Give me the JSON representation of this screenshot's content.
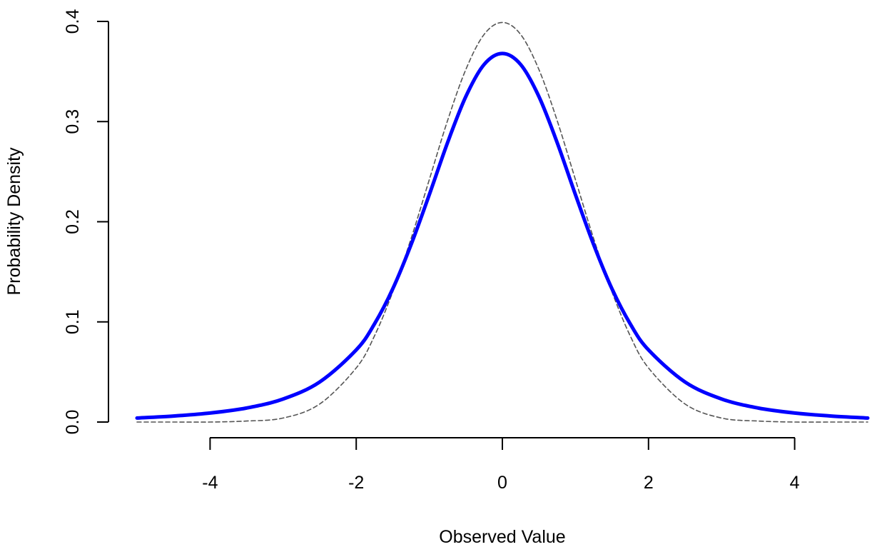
{
  "chart_data": {
    "type": "line",
    "title": "",
    "xlabel": "Observed Value",
    "ylabel": "Probability Density",
    "xlim": [
      -5,
      5
    ],
    "ylim": [
      0,
      0.4
    ],
    "x_ticks": [
      -4,
      -2,
      0,
      2,
      4
    ],
    "x_tick_labels": [
      "-4",
      "-2",
      "0",
      "2",
      "4"
    ],
    "y_ticks": [
      0,
      0.1,
      0.2,
      0.3,
      0.4
    ],
    "y_tick_labels": [
      "0.0",
      "0.1",
      "0.2",
      "0.3",
      "0.4"
    ],
    "grid": false,
    "legend": "none",
    "series": [
      {
        "style": "solid",
        "color": "#0000ff",
        "x": [
          -5,
          -4.5,
          -4,
          -3.5,
          -3,
          -2.5,
          -2,
          -1.75,
          -1.5,
          -1.25,
          -1,
          -0.75,
          -0.5,
          -0.25,
          0,
          0.25,
          0.5,
          0.75,
          1,
          1.25,
          1.5,
          1.75,
          2,
          2.5,
          3,
          3.5,
          4,
          4.5,
          5
        ],
        "values": [
          0.004,
          0.006,
          0.009,
          0.014,
          0.023,
          0.04,
          0.072,
          0.098,
          0.133,
          0.177,
          0.227,
          0.279,
          0.325,
          0.357,
          0.368,
          0.357,
          0.325,
          0.279,
          0.227,
          0.177,
          0.133,
          0.098,
          0.072,
          0.04,
          0.023,
          0.014,
          0.009,
          0.006,
          0.004
        ]
      },
      {
        "style": "dashed",
        "color": "#555555",
        "x": [
          -5,
          -4.5,
          -4,
          -3.5,
          -3,
          -2.5,
          -2,
          -1.75,
          -1.5,
          -1.25,
          -1,
          -0.75,
          -0.5,
          -0.25,
          0,
          0.25,
          0.5,
          0.75,
          1,
          1.25,
          1.5,
          1.75,
          2,
          2.5,
          3,
          3.5,
          4,
          4.5,
          5
        ],
        "values": [
          0.0,
          0.0,
          0.0,
          0.001,
          0.004,
          0.018,
          0.054,
          0.086,
          0.13,
          0.183,
          0.242,
          0.301,
          0.352,
          0.387,
          0.399,
          0.387,
          0.352,
          0.301,
          0.242,
          0.183,
          0.13,
          0.086,
          0.054,
          0.018,
          0.004,
          0.001,
          0.0,
          0.0,
          0.0
        ]
      }
    ]
  }
}
